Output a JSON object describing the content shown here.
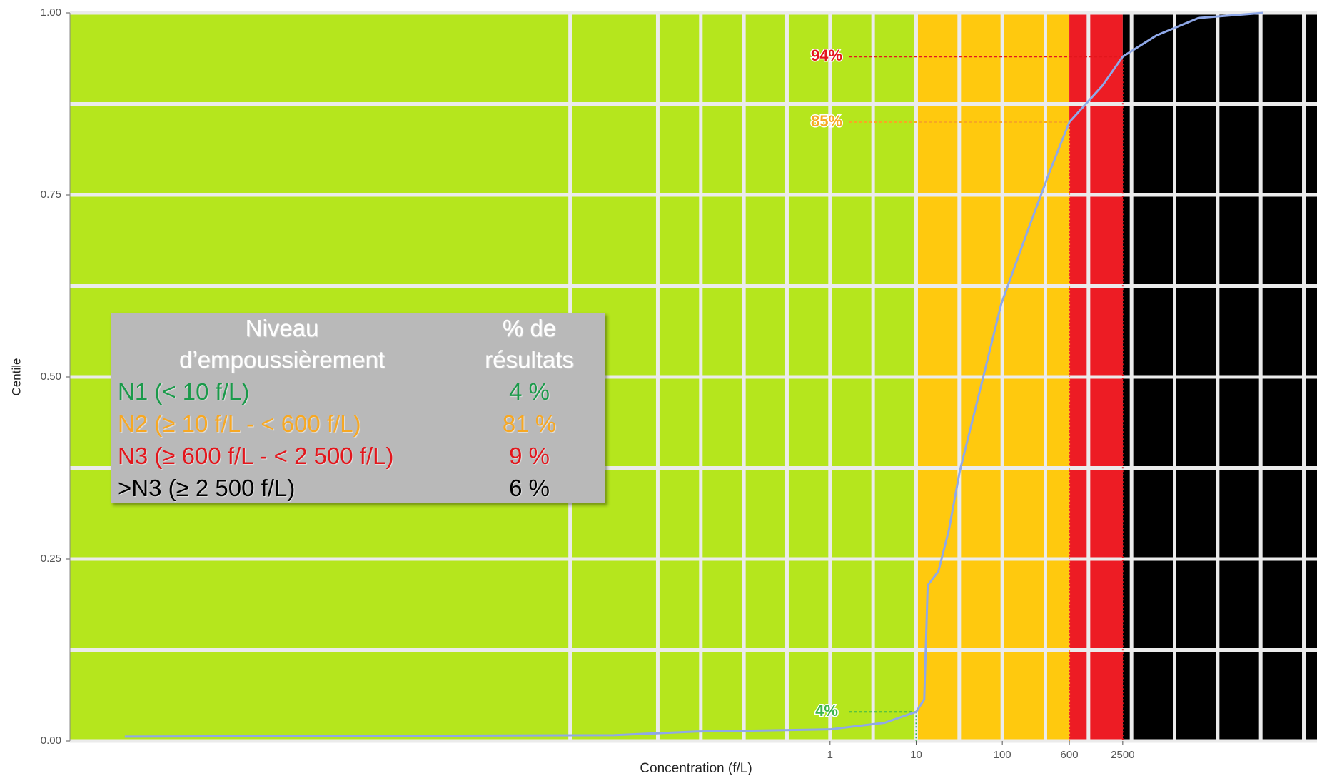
{
  "chart_data": {
    "type": "line",
    "x_label": "Concentration (f/L)",
    "y_label": "Centile",
    "log_x": true,
    "xlim": [
      1.5e-09,
      450000
    ],
    "ylim": [
      0,
      1
    ],
    "xticks": [
      1,
      10,
      100,
      600,
      2500
    ],
    "yticks": [
      {
        "value": 0,
        "label": "0.00"
      },
      {
        "value": 0.25,
        "label": "0.25"
      },
      {
        "value": 0.5,
        "label": "0.50"
      },
      {
        "value": 0.75,
        "label": "0.75"
      },
      {
        "value": 1,
        "label": "1.00"
      }
    ],
    "grid": true,
    "zone_breaks": [
      10,
      600,
      2500
    ],
    "zone_colors": [
      "#b5e61d",
      "#ffc90e",
      "#ed1c24",
      "#000000"
    ],
    "series": [
      {
        "color": "#8fa8e8",
        "x": [
          6.5e-09,
          0.0031,
          0.028,
          1,
          4.3,
          10,
          12.4,
          13.6,
          18.1,
          24,
          32,
          52,
          97,
          196,
          350,
          600,
          1450,
          2500,
          6160,
          19000,
          107000
        ],
        "values": [
          0.006,
          0.008,
          0.013,
          0.016,
          0.025,
          0.04,
          0.057,
          0.214,
          0.233,
          0.29,
          0.37,
          0.47,
          0.6,
          0.7,
          0.78,
          0.85,
          0.9,
          0.94,
          0.969,
          0.993,
          1.0
        ]
      }
    ],
    "annotations": [
      {
        "label": "4%",
        "value": 0.04,
        "x": 10,
        "color": "#3cb54a"
      },
      {
        "label": "85%",
        "value": 0.85,
        "x": 600,
        "color": "#f7a823"
      },
      {
        "label": "94%",
        "value": 0.94,
        "x": 2500,
        "color": "#e3161c"
      }
    ]
  },
  "table": {
    "header": [
      [
        "Niveau",
        "d’empoussièrement"
      ],
      [
        "% de",
        "résultats"
      ]
    ],
    "rows": [
      {
        "cells": [
          "N1 (< 10 f/L)",
          "4 %"
        ],
        "color": "#1a9a4a"
      },
      {
        "cells": [
          "N2 (≥ 10 f/L - < 600 f/L)",
          "81 %"
        ],
        "color": "#f7a823"
      },
      {
        "cells": [
          "N3 (≥ 600 f/L - < 2 500 f/L)",
          "9 %"
        ],
        "color": "#e3161c"
      },
      {
        "cells": [
          ">N3 (≥ 2 500 f/L)",
          "6 %"
        ],
        "color": "#000000"
      }
    ]
  }
}
